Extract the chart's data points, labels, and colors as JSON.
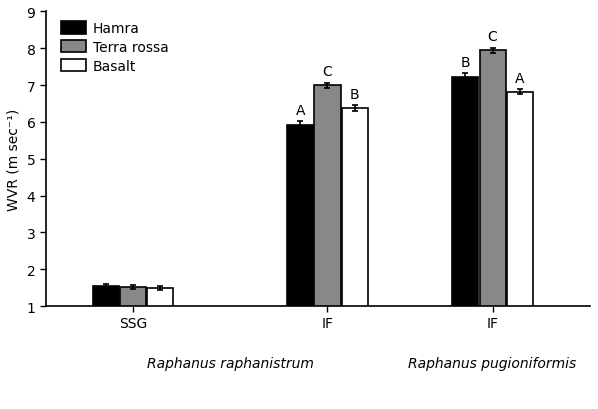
{
  "groups": [
    {
      "label": "SSG",
      "bars": [
        {
          "value": 1.55,
          "error": 0.05,
          "color": "#000000",
          "sig": null
        },
        {
          "value": 1.52,
          "error": 0.05,
          "color": "#888888",
          "sig": null
        },
        {
          "value": 1.5,
          "error": 0.05,
          "color": "#ffffff",
          "sig": null
        }
      ]
    },
    {
      "label": "IF",
      "bars": [
        {
          "value": 5.92,
          "error": 0.1,
          "color": "#000000",
          "sig": "A"
        },
        {
          "value": 7.0,
          "error": 0.07,
          "color": "#888888",
          "sig": "C"
        },
        {
          "value": 6.38,
          "error": 0.07,
          "color": "#ffffff",
          "sig": "B"
        }
      ]
    },
    {
      "label": "IF",
      "bars": [
        {
          "value": 7.22,
          "error": 0.1,
          "color": "#000000",
          "sig": "B"
        },
        {
          "value": 7.95,
          "error": 0.07,
          "color": "#888888",
          "sig": "C"
        },
        {
          "value": 6.82,
          "error": 0.07,
          "color": "#ffffff",
          "sig": "A"
        }
      ]
    }
  ],
  "ylabel": "WVR (m sec⁻¹)",
  "ylim": [
    1,
    9
  ],
  "yticks": [
    1,
    2,
    3,
    4,
    5,
    6,
    7,
    8,
    9
  ],
  "legend_labels": [
    "Hamra",
    "Terra rossa",
    "Basalt"
  ],
  "legend_colors": [
    "#000000",
    "#888888",
    "#ffffff"
  ],
  "bar_width": 0.28,
  "bar_edge_color": "#000000",
  "group_positions": [
    1.5,
    3.5,
    5.2
  ],
  "xlim": [
    0.6,
    6.2
  ],
  "species1_label": "Raphanus raphanistrum",
  "species2_label": "Raphanus pugioniformis",
  "species1_x_center": 2.5,
  "species2_x_center": 5.2,
  "sig_fontsize": 10,
  "axis_fontsize": 10,
  "legend_fontsize": 10,
  "tick_fontsize": 10
}
